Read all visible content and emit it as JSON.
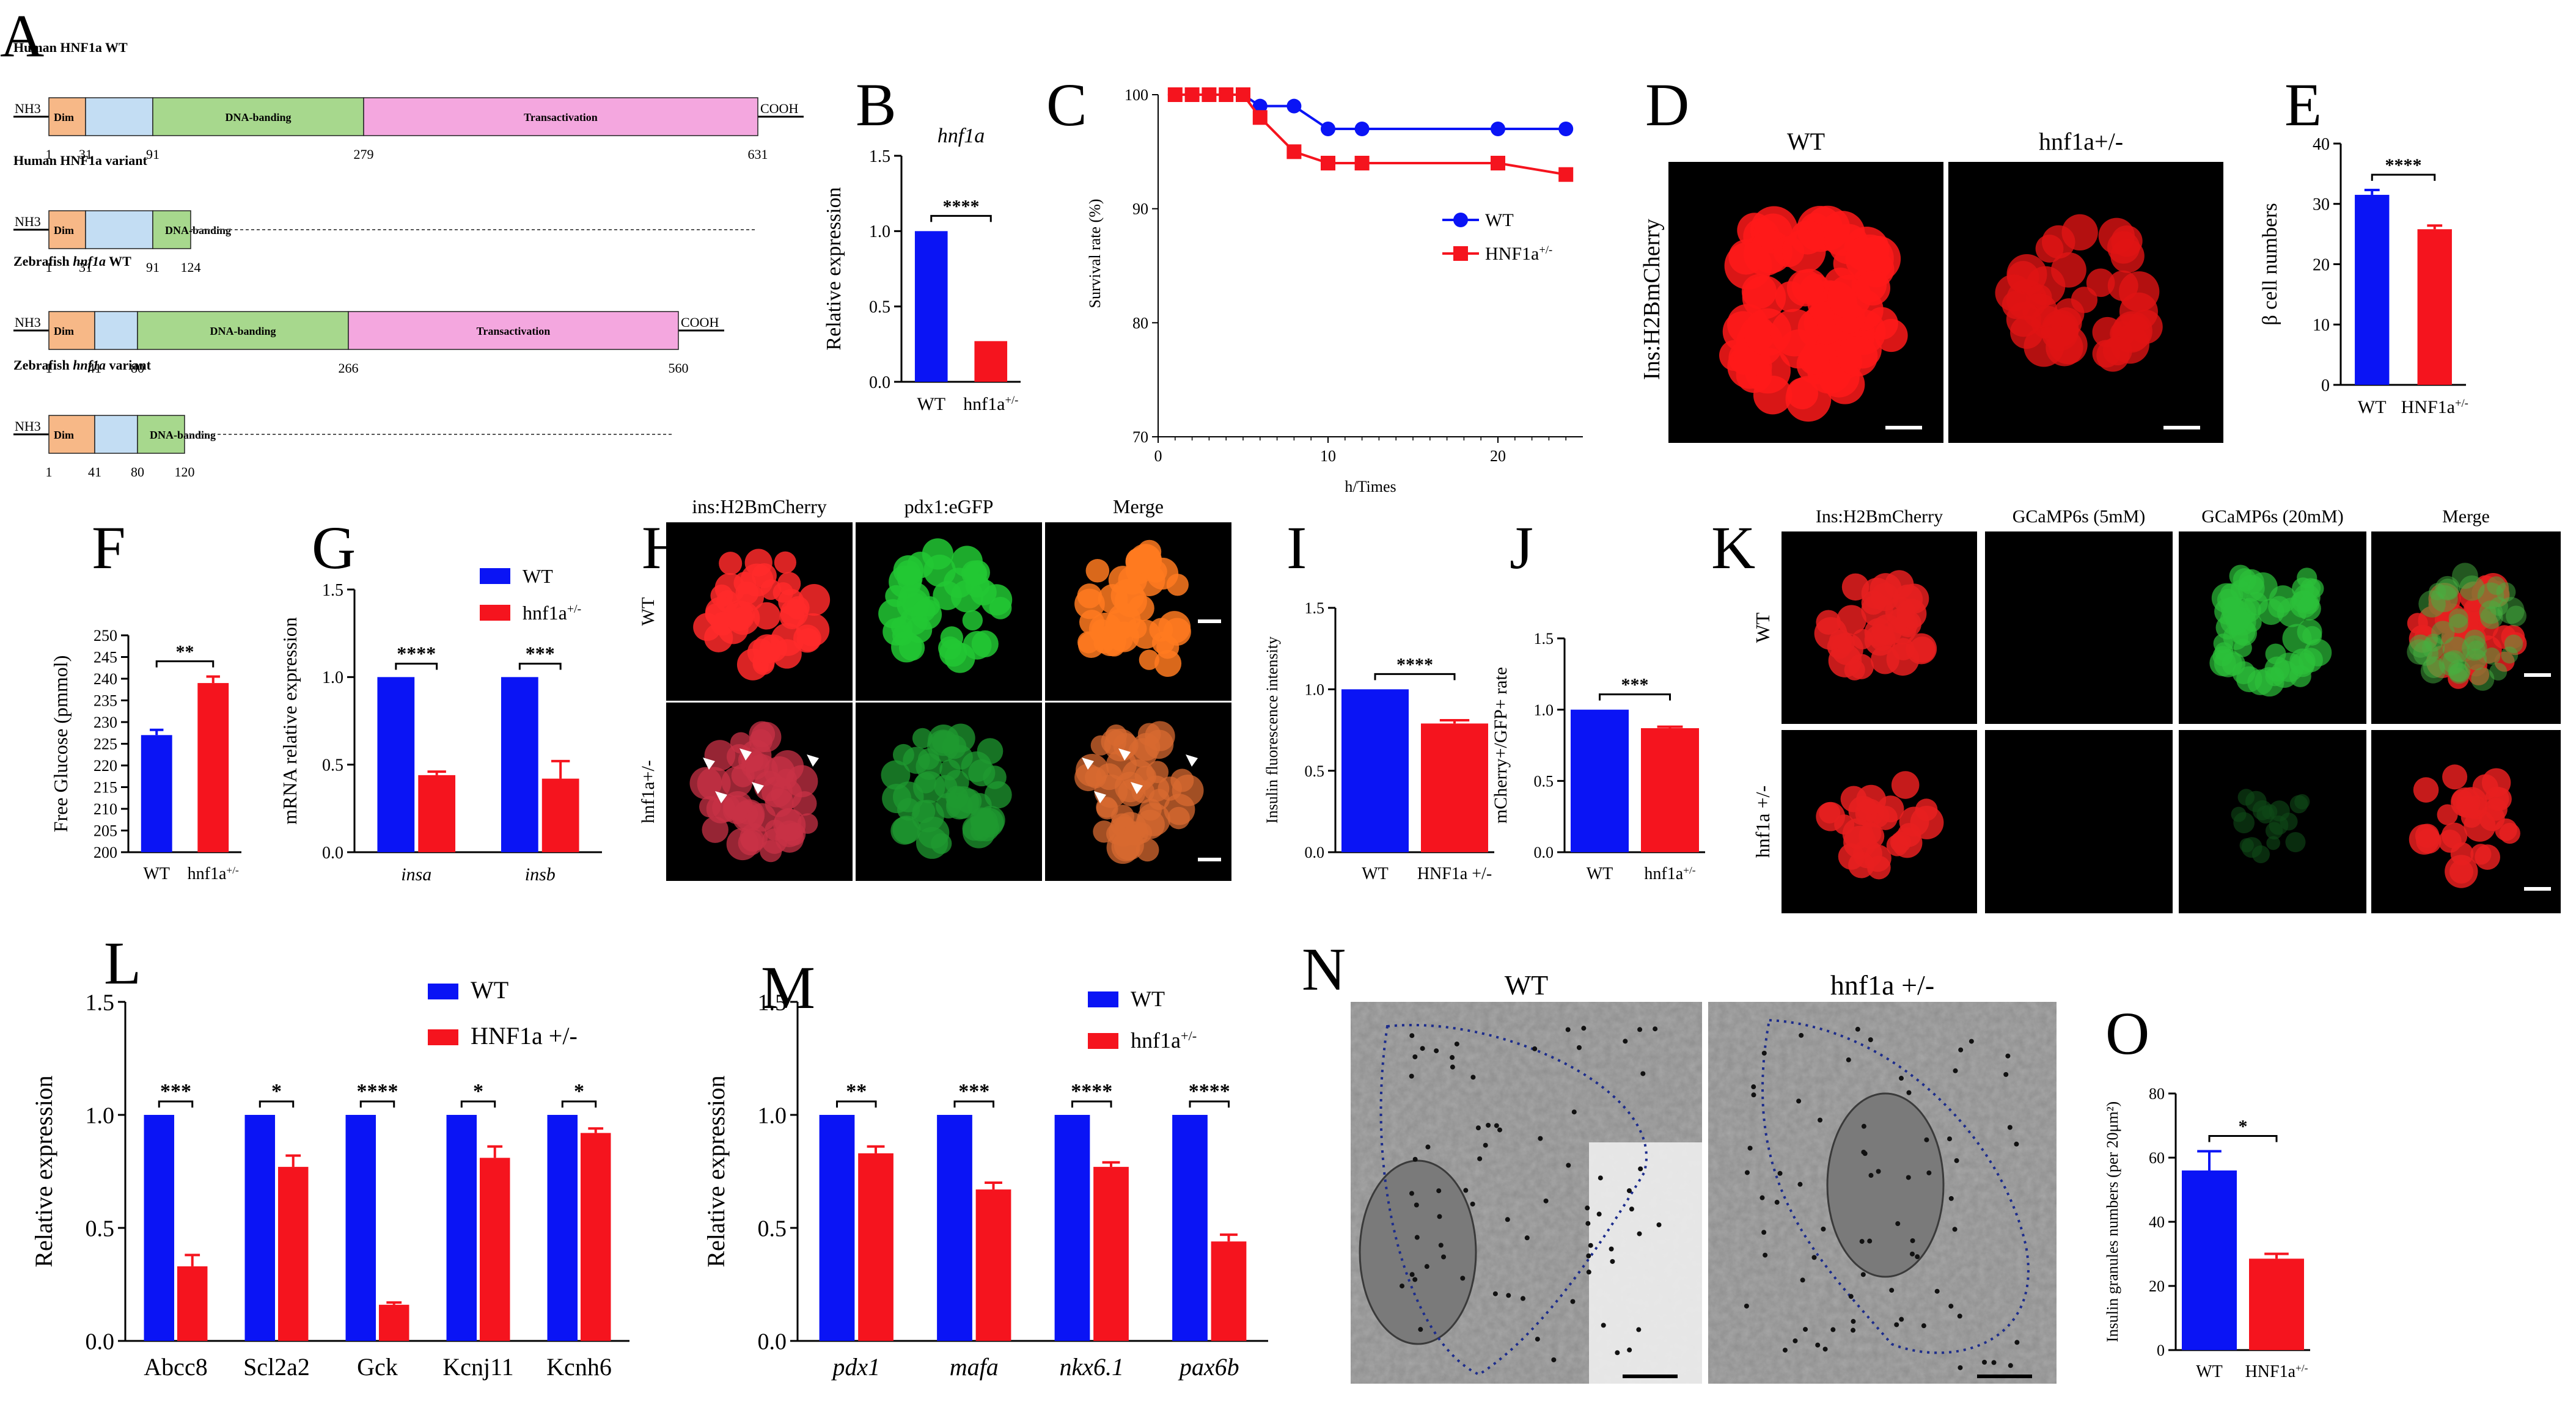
{
  "panels": [
    "A",
    "B",
    "C",
    "D",
    "E",
    "F",
    "G",
    "H",
    "I",
    "J",
    "K",
    "L",
    "M",
    "N",
    "O"
  ],
  "colors": {
    "wt": "#0a14f5",
    "mut": "#f5141e",
    "dim": "#f7b887",
    "d2": "#c3ddf3",
    "dna": "#a7d88d",
    "trans": "#f4a7df"
  },
  "panelA": {
    "rows": [
      {
        "title": "Human HNF1a WT",
        "nterm": "NH3",
        "cterm": "COOH",
        "dim": "Dim",
        "dna": "DNA-banding",
        "trans": "Transactivation",
        "ticks": [
          "1",
          "31",
          "91",
          "279",
          "631"
        ]
      },
      {
        "title": "Human HNF1a variant",
        "nterm": "NH3",
        "dim": "Dim",
        "dna": "DNA-banding",
        "ticks": [
          "1",
          "31",
          "91",
          "124"
        ]
      },
      {
        "title": "Zebrafish hnf1a WT",
        "nterm": "NH3",
        "cterm": "COOH",
        "dim": "Dim",
        "dna": "DNA-banding",
        "trans": "Transactivation",
        "ticks": [
          "1",
          "41",
          "80",
          "266",
          "560"
        ]
      },
      {
        "title": "Zebrafish hnf1a variant",
        "nterm": "NH3",
        "dim": "Dim",
        "dna": "DNA-banding",
        "ticks": [
          "1",
          "41",
          "80",
          "120"
        ]
      }
    ]
  },
  "chart_data": [
    {
      "panel": "B",
      "type": "bar",
      "title": "hnf1a",
      "categories": [
        "WT",
        "hnf1a+/-"
      ],
      "values": [
        1.0,
        0.27
      ],
      "ylabel": "Relative expression",
      "ylim": [
        0,
        1.5
      ],
      "yticks": [
        "0.0",
        "0.5",
        "1.0",
        "1.5"
      ],
      "sig": "****"
    },
    {
      "panel": "C",
      "type": "line",
      "xlabel": "h/Times",
      "ylabel": "Survival rate (%)",
      "xlim": [
        0,
        25
      ],
      "ylim": [
        70,
        100
      ],
      "xticks": [
        "0",
        "10",
        "20"
      ],
      "yticks": [
        "70",
        "80",
        "90",
        "100"
      ],
      "series": [
        {
          "name": "WT",
          "x": [
            1,
            2,
            3,
            4,
            5,
            6,
            8,
            10,
            12,
            20,
            24
          ],
          "y": [
            100,
            100,
            100,
            100,
            100,
            99,
            99,
            97,
            97,
            97,
            97
          ]
        },
        {
          "name": "HNF1a+/-",
          "x": [
            1,
            2,
            3,
            4,
            5,
            6,
            8,
            10,
            12,
            20,
            24
          ],
          "y": [
            100,
            100,
            100,
            100,
            100,
            98,
            95,
            94,
            94,
            94,
            93
          ]
        }
      ],
      "legend": "right"
    },
    {
      "panel": "E",
      "type": "bar",
      "categories": [
        "WT",
        "HNF1a+/-"
      ],
      "values": [
        31.5,
        25.8
      ],
      "errors": [
        0.8,
        0.6
      ],
      "ylabel": "β cell numbers",
      "ylim": [
        0,
        40
      ],
      "yticks": [
        "0",
        "10",
        "20",
        "30",
        "40"
      ],
      "sig": "****"
    },
    {
      "panel": "F",
      "type": "bar",
      "categories": [
        "WT",
        "hnf1a+/-"
      ],
      "values": [
        227,
        239
      ],
      "errors": [
        1.2,
        1.5
      ],
      "ylabel": "Free Glucose (pmmol)",
      "ylim": [
        200,
        250
      ],
      "yticks": [
        "200",
        "205",
        "210",
        "215",
        "220",
        "225",
        "230",
        "235",
        "240",
        "245",
        "250"
      ],
      "sig": "**"
    },
    {
      "panel": "G",
      "type": "bar",
      "categories": [
        "insa",
        "insb"
      ],
      "series": [
        {
          "name": "WT",
          "values": [
            1.0,
            1.0
          ]
        },
        {
          "name": "hnf1a+/-",
          "values": [
            0.44,
            0.42
          ]
        }
      ],
      "errors": [
        [
          0,
          0
        ],
        [
          0.02,
          0.1
        ]
      ],
      "ylabel": "mRNA relative expression",
      "ylim": [
        0,
        1.5
      ],
      "yticks": [
        "0.0",
        "0.5",
        "1.0",
        "1.5"
      ],
      "sig": [
        "****",
        "***"
      ]
    },
    {
      "panel": "I",
      "type": "bar",
      "categories": [
        "WT",
        "HNF1a +/-"
      ],
      "values": [
        1.0,
        0.79
      ],
      "errors": [
        0,
        0.02
      ],
      "ylabel": "Insulin fluorescence intensity",
      "ylim": [
        0,
        1.5
      ],
      "yticks": [
        "0.0",
        "0.5",
        "1.0",
        "1.5"
      ],
      "sig": "****"
    },
    {
      "panel": "J",
      "type": "bar",
      "categories": [
        "WT",
        "hnf1a+/-"
      ],
      "values": [
        1.0,
        0.87
      ],
      "errors": [
        0,
        0.01
      ],
      "ylabel": "mCherry+/GFP+ rate",
      "ylim": [
        0,
        1.5
      ],
      "yticks": [
        "0.0",
        "0.5",
        "1.0",
        "1.5"
      ],
      "sig": "***"
    },
    {
      "panel": "L",
      "type": "bar",
      "categories": [
        "Abcc8",
        "Scl2a2",
        "Gck",
        "Kcnj11",
        "Kcnh6"
      ],
      "series": [
        {
          "name": "WT",
          "values": [
            1.0,
            1.0,
            1.0,
            1.0,
            1.0
          ]
        },
        {
          "name": "HNF1a +/-",
          "values": [
            0.33,
            0.77,
            0.16,
            0.81,
            0.92
          ]
        }
      ],
      "errors": [
        [
          0,
          0,
          0,
          0,
          0
        ],
        [
          0.05,
          0.05,
          0.01,
          0.05,
          0.02
        ]
      ],
      "ylabel": "Relative expression",
      "ylim": [
        0,
        1.5
      ],
      "yticks": [
        "0.0",
        "0.5",
        "1.0",
        "1.5"
      ],
      "sig": [
        "***",
        "*",
        "****",
        "*",
        "*"
      ]
    },
    {
      "panel": "M",
      "type": "bar",
      "categories": [
        "pdx1",
        "mafa",
        "nkx6.1",
        "pax6b"
      ],
      "series": [
        {
          "name": "WT",
          "values": [
            1.0,
            1.0,
            1.0,
            1.0
          ]
        },
        {
          "name": "hnf1a+/-",
          "values": [
            0.83,
            0.67,
            0.77,
            0.44
          ]
        }
      ],
      "errors": [
        [
          0,
          0,
          0,
          0
        ],
        [
          0.03,
          0.03,
          0.02,
          0.03
        ]
      ],
      "ylabel": "Relative expression",
      "ylim": [
        0,
        1.5
      ],
      "yticks": [
        "0.0",
        "0.5",
        "1.0",
        "1.5"
      ],
      "sig": [
        "**",
        "***",
        "****",
        "****"
      ]
    },
    {
      "panel": "O",
      "type": "bar",
      "categories": [
        "WT",
        "HNF1a+/-"
      ],
      "values": [
        56,
        28.5
      ],
      "errors": [
        6,
        1.5
      ],
      "ylabel": "Insulin granules numbers (per 20μm²)",
      "ylim": [
        0,
        80
      ],
      "yticks": [
        "0",
        "20",
        "40",
        "60",
        "80"
      ],
      "sig": "*"
    }
  ],
  "panelD": {
    "col1": "WT",
    "col2": "hnf1a+/-",
    "rowlabel": "Ins:H2BmCherry"
  },
  "panelH": {
    "cols": [
      "ins:H2BmCherry",
      "pdx1:eGFP",
      "Merge"
    ],
    "rows": [
      "WT",
      "hnf1a+/-"
    ]
  },
  "panelK": {
    "cols": [
      "Ins:H2BmCherry",
      "GCaMP6s (5mM)",
      "GCaMP6s (20mM)",
      "Merge"
    ],
    "rows": [
      "WT",
      "hnf1a +/-"
    ]
  },
  "panelN": {
    "col1": "WT",
    "col2": "hnf1a +/-"
  }
}
